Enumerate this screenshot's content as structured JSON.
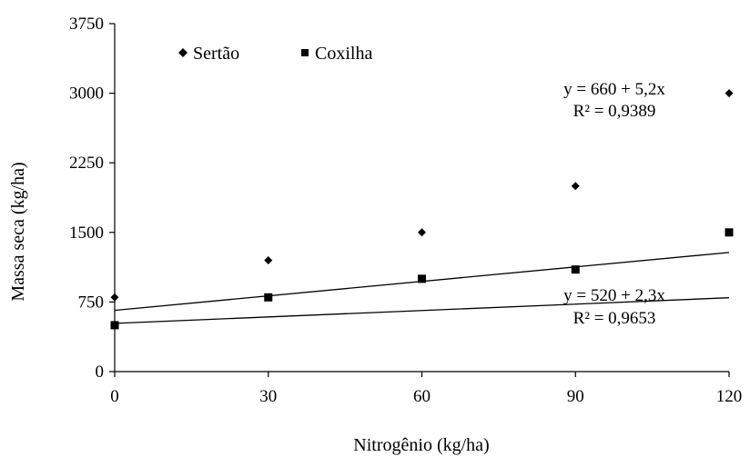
{
  "chart_data": {
    "type": "scatter",
    "xlabel": "Nitrogênio (kg/ha)",
    "ylabel": "Massa seca (kg/ha)",
    "xlim": [
      0,
      120
    ],
    "ylim": [
      0,
      3750
    ],
    "xticks": [
      0,
      30,
      60,
      90,
      120
    ],
    "yticks": [
      0,
      750,
      1500,
      2250,
      3000,
      3750
    ],
    "x_tick_labels": [
      "0",
      "30",
      "60",
      "90",
      "120"
    ],
    "y_tick_labels": [
      "0",
      "750",
      "1500",
      "2250",
      "3000",
      "3750"
    ],
    "grid": false,
    "legend_position": "top-left",
    "series": [
      {
        "name": "Sertão",
        "marker": "diamond",
        "color": "#000000",
        "x": [
          0,
          30,
          60,
          90,
          120
        ],
        "y": [
          800,
          1200,
          1500,
          2000,
          3000
        ],
        "trendline": {
          "intercept": 660,
          "slope": 5.2,
          "equation": "y = 660 + 5,2x",
          "r2": "R² = 0,9389"
        }
      },
      {
        "name": "Coxilha",
        "marker": "square",
        "color": "#000000",
        "x": [
          0,
          30,
          60,
          90,
          120
        ],
        "y": [
          500,
          800,
          1000,
          1100,
          1500
        ],
        "trendline": {
          "intercept": 520,
          "slope": 2.3,
          "equation": "y = 520 + 2,3x",
          "r2": "R² = 0,9653"
        }
      }
    ]
  }
}
